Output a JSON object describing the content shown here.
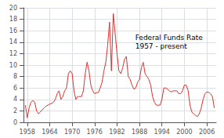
{
  "chart_data": {
    "type": "line",
    "title": "Federal Funds Rate\n1957 - present",
    "color": "#e03030",
    "x": [
      1957.5,
      1958.0,
      1958.5,
      1959.0,
      1959.5,
      1960.0,
      1960.5,
      1961.0,
      1961.5,
      1962.0,
      1962.5,
      1963.0,
      1963.5,
      1964.0,
      1964.5,
      1965.0,
      1965.5,
      1966.0,
      1966.5,
      1967.0,
      1967.5,
      1968.0,
      1968.5,
      1969.0,
      1969.5,
      1970.0,
      1970.5,
      1971.0,
      1971.5,
      1972.0,
      1972.5,
      1973.0,
      1973.5,
      1974.0,
      1974.5,
      1975.0,
      1975.5,
      1976.0,
      1976.5,
      1977.0,
      1977.5,
      1978.0,
      1978.5,
      1979.0,
      1979.5,
      1980.0,
      1980.5,
      1981.0,
      1981.5,
      1982.0,
      1982.5,
      1983.0,
      1983.5,
      1984.0,
      1984.5,
      1985.0,
      1985.5,
      1986.0,
      1986.5,
      1987.0,
      1987.5,
      1988.0,
      1988.5,
      1989.0,
      1989.5,
      1990.0,
      1990.5,
      1991.0,
      1991.5,
      1992.0,
      1992.5,
      1993.0,
      1993.5,
      1994.0,
      1994.5,
      1995.0,
      1995.5,
      1996.0,
      1996.5,
      1997.0,
      1997.5,
      1998.0,
      1998.5,
      1999.0,
      1999.5,
      2000.0,
      2000.5,
      2001.0,
      2001.5,
      2002.0,
      2002.5,
      2003.0,
      2003.5,
      2004.0,
      2004.5,
      2005.0,
      2005.5,
      2006.0,
      2006.5,
      2007.0,
      2007.5,
      2008.0
    ],
    "values": [
      3.0,
      0.8,
      2.5,
      3.5,
      3.8,
      3.5,
      2.0,
      1.5,
      1.8,
      2.2,
      2.5,
      2.8,
      3.0,
      3.2,
      3.3,
      3.5,
      4.0,
      5.0,
      5.5,
      4.0,
      4.5,
      5.5,
      6.0,
      8.5,
      9.0,
      8.5,
      5.5,
      4.0,
      4.5,
      4.5,
      4.5,
      5.5,
      8.5,
      10.5,
      9.0,
      6.5,
      5.5,
      5.0,
      5.2,
      5.2,
      6.0,
      7.0,
      9.0,
      10.5,
      13.5,
      17.5,
      9.0,
      19.0,
      15.5,
      12.0,
      9.0,
      8.5,
      9.5,
      11.0,
      11.5,
      8.0,
      7.5,
      6.5,
      5.8,
      6.0,
      7.0,
      7.5,
      9.5,
      10.5,
      8.5,
      8.0,
      7.5,
      6.5,
      4.5,
      3.5,
      3.0,
      3.0,
      3.0,
      4.0,
      6.0,
      6.0,
      5.8,
      5.5,
      5.3,
      5.5,
      5.5,
      5.5,
      5.0,
      5.0,
      5.5,
      6.5,
      6.5,
      5.5,
      3.0,
      1.8,
      1.5,
      1.2,
      1.0,
      1.5,
      2.5,
      4.0,
      5.0,
      5.3,
      5.25,
      5.0,
      4.5,
      2.5
    ],
    "xlim": [
      1957,
      2008.5
    ],
    "xticks": [
      1958,
      1964,
      1970,
      1976,
      1982,
      1988,
      1994,
      2000,
      2006
    ],
    "ylim": [
      0,
      20
    ],
    "yticks": [
      0,
      2,
      4,
      6,
      8,
      10,
      12,
      14,
      16,
      18,
      20
    ],
    "grid": true
  }
}
